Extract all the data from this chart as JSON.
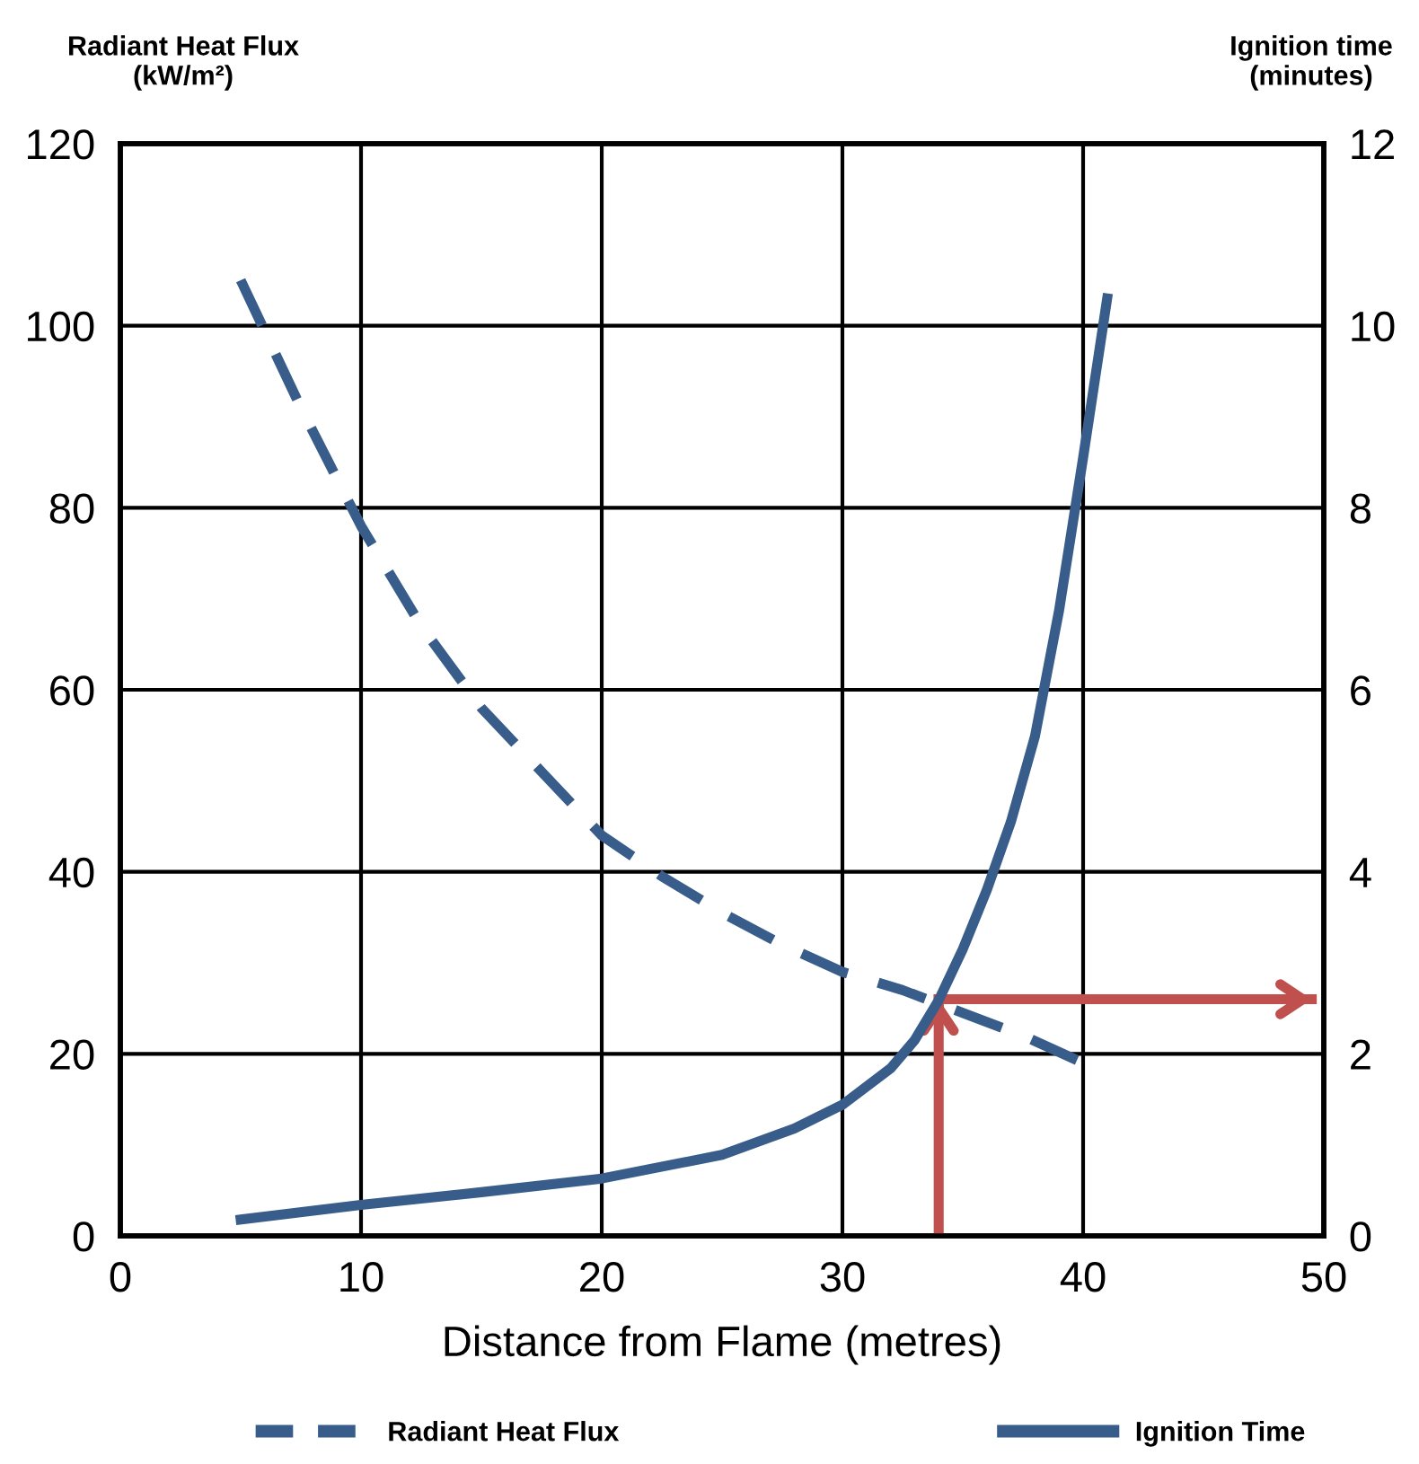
{
  "chart_data": {
    "type": "line",
    "xlabel": "Distance from Flame (metres)",
    "ylabel": "Radiant Heat Flux\n(kW/m²)",
    "y2label": "Ignition time\n(minutes)",
    "series": [
      {
        "name": "Radiant Heat Flux",
        "color": "#385d8a",
        "line_style": "dashed",
        "x": [
          5,
          7.5,
          10,
          12.5,
          15,
          17.5,
          20,
          22.5,
          25,
          27.5,
          30,
          32.5,
          35,
          37.5,
          40
        ],
        "values": [
          105,
          91,
          78,
          67,
          58,
          51,
          44,
          39.5,
          35.5,
          32,
          29,
          27,
          24.5,
          22,
          19
        ]
      },
      {
        "color": "#c0504d",
        "line_style": "solid",
        "x": [
          34,
          34
        ],
        "values": [
          0,
          26
        ]
      },
      {
        "color": "#c0504d",
        "line_style": "solid",
        "x": [
          34,
          49.5
        ],
        "values": [
          26,
          26
        ]
      },
      {
        "name": "Ignition Time",
        "color": "#385d8a",
        "line_style": "solid",
        "axis": "y2",
        "x": [
          5,
          10,
          15,
          20,
          25,
          28,
          30,
          32,
          33,
          34,
          35,
          36,
          37,
          38,
          39,
          40,
          41
        ],
        "values": [
          0.18,
          0.34,
          0.48,
          0.63,
          0.89,
          1.18,
          1.44,
          1.84,
          2.15,
          2.59,
          3.15,
          3.8,
          4.55,
          5.49,
          6.87,
          8.55,
          10.3
        ]
      }
    ],
    "xlim": [
      0,
      50
    ],
    "xticks": [
      0,
      10,
      20,
      30,
      40,
      50
    ],
    "ylim": [
      0,
      120
    ],
    "yticks": [
      0,
      20,
      40,
      60,
      80,
      100,
      120
    ],
    "y2lim": [
      0,
      12
    ],
    "y2ticks": [
      0,
      2,
      4,
      6,
      8,
      10,
      12
    ],
    "grid": true,
    "legend": "bottom",
    "marker": "none"
  }
}
